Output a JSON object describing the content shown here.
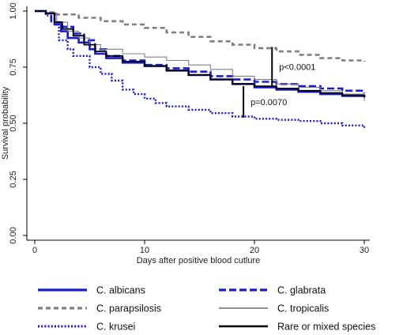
{
  "chart_data": {
    "type": "line",
    "title": "",
    "xlabel": "Days after positive blood cutlure",
    "ylabel": "Survival probability",
    "xlim": [
      0,
      30
    ],
    "ylim": [
      0,
      1
    ],
    "x_ticks": [
      "0",
      "10",
      "20",
      "30"
    ],
    "y_ticks": [
      "0.00",
      "0.25",
      "0.50",
      "0.75",
      "1.00"
    ],
    "grid": false,
    "legend_position": "bottom",
    "series": [
      {
        "name": "C. albicans",
        "color": "#1a1ad6",
        "style": "solid",
        "points": [
          [
            0,
            1.0
          ],
          [
            1,
            0.99
          ],
          [
            1.8,
            0.94
          ],
          [
            2.4,
            0.91
          ],
          [
            3,
            0.88
          ],
          [
            4,
            0.86
          ],
          [
            5,
            0.83
          ],
          [
            5.5,
            0.81
          ],
          [
            6.5,
            0.79
          ],
          [
            8,
            0.77
          ],
          [
            10,
            0.755
          ],
          [
            12,
            0.735
          ],
          [
            14,
            0.715
          ],
          [
            16,
            0.695
          ],
          [
            18,
            0.675
          ],
          [
            20,
            0.66
          ],
          [
            22,
            0.65
          ],
          [
            24,
            0.64
          ],
          [
            26,
            0.63
          ],
          [
            28,
            0.622
          ],
          [
            30,
            0.615
          ]
        ]
      },
      {
        "name": "C. glabrata",
        "color": "#1a1ad6",
        "style": "dashed",
        "points": [
          [
            0,
            1.0
          ],
          [
            1,
            0.99
          ],
          [
            1.5,
            0.95
          ],
          [
            2.5,
            0.93
          ],
          [
            3.5,
            0.9
          ],
          [
            4.5,
            0.87
          ],
          [
            5.5,
            0.83
          ],
          [
            6.5,
            0.8
          ],
          [
            8,
            0.78
          ],
          [
            10,
            0.76
          ],
          [
            12,
            0.745
          ],
          [
            14,
            0.73
          ],
          [
            16,
            0.71
          ],
          [
            18,
            0.695
          ],
          [
            20,
            0.685
          ],
          [
            22,
            0.675
          ],
          [
            24,
            0.665
          ],
          [
            26,
            0.655
          ],
          [
            28,
            0.645
          ],
          [
            30,
            0.635
          ]
        ]
      },
      {
        "name": "C. parapsilosis",
        "color": "#808080",
        "style": "dashed",
        "points": [
          [
            0,
            1.0
          ],
          [
            1,
            0.995
          ],
          [
            2,
            0.985
          ],
          [
            4,
            0.97
          ],
          [
            6,
            0.955
          ],
          [
            8,
            0.94
          ],
          [
            10,
            0.925
          ],
          [
            12,
            0.905
          ],
          [
            14,
            0.885
          ],
          [
            16,
            0.865
          ],
          [
            18,
            0.85
          ],
          [
            20,
            0.835
          ],
          [
            22,
            0.82
          ],
          [
            24,
            0.805
          ],
          [
            26,
            0.79
          ],
          [
            28,
            0.78
          ],
          [
            30,
            0.775
          ]
        ]
      },
      {
        "name": "C. tropicalis",
        "color": "#808080",
        "style": "solid",
        "points": [
          [
            0,
            1.0
          ],
          [
            1,
            0.99
          ],
          [
            2,
            0.95
          ],
          [
            3,
            0.91
          ],
          [
            4,
            0.88
          ],
          [
            5,
            0.85
          ],
          [
            6,
            0.83
          ],
          [
            8,
            0.81
          ],
          [
            10,
            0.795
          ],
          [
            12,
            0.78
          ],
          [
            14,
            0.76
          ],
          [
            16,
            0.74
          ],
          [
            18,
            0.71
          ],
          [
            20,
            0.695
          ],
          [
            22,
            0.675
          ],
          [
            24,
            0.66
          ],
          [
            26,
            0.645
          ],
          [
            28,
            0.63
          ],
          [
            30,
            0.6
          ]
        ]
      },
      {
        "name": "C. krusei",
        "color": "#1a1ad6",
        "style": "dotted",
        "points": [
          [
            0,
            1.0
          ],
          [
            1,
            0.98
          ],
          [
            1.8,
            0.94
          ],
          [
            2.2,
            0.87
          ],
          [
            3,
            0.83
          ],
          [
            3.5,
            0.8
          ],
          [
            5,
            0.75
          ],
          [
            6,
            0.72
          ],
          [
            7,
            0.69
          ],
          [
            8,
            0.65
          ],
          [
            9,
            0.63
          ],
          [
            10,
            0.61
          ],
          [
            11,
            0.59
          ],
          [
            12,
            0.575
          ],
          [
            14,
            0.56
          ],
          [
            16,
            0.545
          ],
          [
            18,
            0.53
          ],
          [
            20,
            0.52
          ],
          [
            22,
            0.515
          ],
          [
            24,
            0.51
          ],
          [
            26,
            0.5
          ],
          [
            28,
            0.49
          ],
          [
            30,
            0.475
          ]
        ]
      },
      {
        "name": "Rare or mixed species",
        "color": "#000000",
        "style": "solid",
        "points": [
          [
            0,
            1.0
          ],
          [
            1,
            0.99
          ],
          [
            1.8,
            0.95
          ],
          [
            2.5,
            0.92
          ],
          [
            3.5,
            0.89
          ],
          [
            4.5,
            0.85
          ],
          [
            5.5,
            0.82
          ],
          [
            6.5,
            0.8
          ],
          [
            8,
            0.775
          ],
          [
            10,
            0.755
          ],
          [
            12,
            0.735
          ],
          [
            14,
            0.715
          ],
          [
            16,
            0.695
          ],
          [
            18,
            0.675
          ],
          [
            20,
            0.665
          ],
          [
            22,
            0.655
          ],
          [
            24,
            0.645
          ],
          [
            26,
            0.635
          ],
          [
            28,
            0.625
          ],
          [
            30,
            0.615
          ]
        ]
      }
    ],
    "annotations": [
      {
        "label": "p<0.0001",
        "x": 21.6,
        "y_top": 0.84,
        "y_bottom": 0.665
      },
      {
        "label": "p=0.0070",
        "x": 19.0,
        "y_top": 0.665,
        "y_bottom": 0.525
      }
    ]
  }
}
